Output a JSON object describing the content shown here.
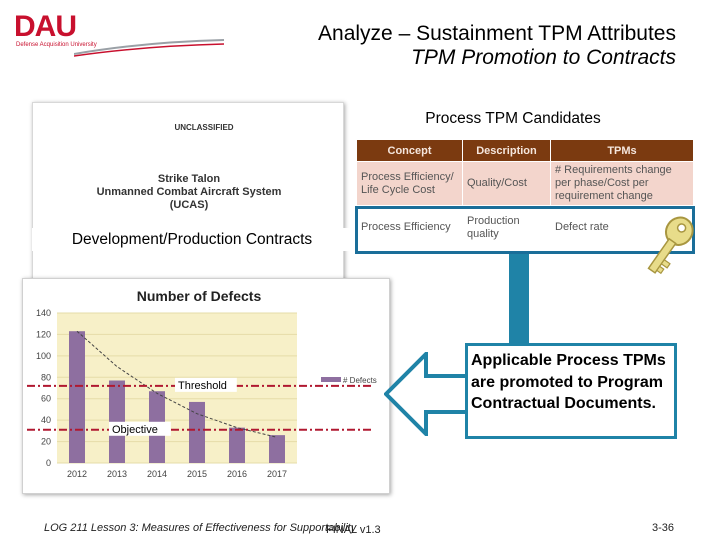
{
  "logo": {
    "text": "DAU",
    "subtitle": "Defense Acquisition University"
  },
  "title": {
    "line1": "Analyze – Sustainment TPM Attributes",
    "line2": "TPM Promotion to Contracts"
  },
  "document": {
    "classification": "UNCLASSIFIED",
    "lines": [
      "Strike Talon",
      "Unmanned Combat Aircraft System",
      "(UCAS)"
    ]
  },
  "dev_prod_label": "Development/Production Contracts",
  "candidates": {
    "title": "Process TPM Candidates",
    "columns": [
      "Concept",
      "Description",
      "TPMs"
    ],
    "rows": [
      [
        "Process Efficiency/ Life Cycle Cost",
        "Quality/Cost",
        "# Requirements change per phase/Cost per requirement change"
      ],
      [
        "Process Efficiency",
        "Production quality",
        "Defect rate"
      ]
    ]
  },
  "callout": "Applicable Process TPMs are promoted to Program Contractual Documents.",
  "chart_data": {
    "type": "bar",
    "title": "Number of Defects",
    "categories": [
      "2012",
      "2013",
      "2014",
      "2015",
      "2016",
      "2017"
    ],
    "series": [
      {
        "name": "# Defects",
        "values": [
          123,
          77,
          67,
          57,
          33,
          26
        ]
      }
    ],
    "ylim": [
      0,
      140
    ],
    "yticks": [
      0,
      20,
      40,
      60,
      80,
      100,
      120,
      140
    ],
    "threshold": {
      "label": "Threshold",
      "value": 72
    },
    "objective": {
      "label": "Objective",
      "value": 31
    },
    "trendline": [
      123,
      90,
      65,
      46,
      33,
      24
    ],
    "colors": {
      "bar": "#8e6fa0",
      "plot_bg": "#f7f0c8",
      "reference_line": "#b01830",
      "trend": "#444444"
    }
  },
  "footer": {
    "left": "LOG 211 Lesson 3: Measures of Effectiveness for Supportability",
    "mid": "FINAL v1.3",
    "right": "3-36"
  },
  "colors": {
    "accent_blue": "#1f83a7",
    "table_header": "#7b3a10",
    "dau_red": "#c8102e"
  }
}
